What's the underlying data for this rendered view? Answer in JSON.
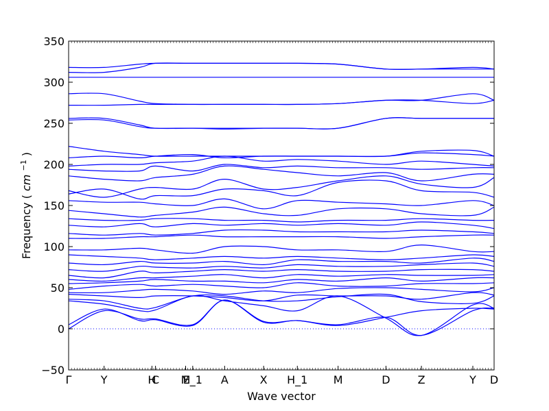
{
  "chart_data": {
    "type": "line",
    "xlabel": "Wave vector",
    "ylabel": "Frequency",
    "ylabel_unit": "cm",
    "ylabel_unit_exponent": "−1",
    "ylim": [
      -50,
      350
    ],
    "yticks": [
      -50,
      0,
      50,
      100,
      150,
      200,
      250,
      300,
      350
    ],
    "xlim": [
      0,
      12
    ],
    "special_points": [
      {
        "label": "Γ",
        "x": 0
      },
      {
        "label": "Y",
        "x": 1
      },
      {
        "label": "H",
        "x": 2.35
      },
      {
        "label": "C",
        "x": 2.45
      },
      {
        "label": "M",
        "x": 3.3
      },
      {
        "label": "E_1",
        "x": 3.5
      },
      {
        "label": "A",
        "x": 4.4
      },
      {
        "label": "X",
        "x": 5.5
      },
      {
        "label": "H_1",
        "x": 6.45
      },
      {
        "label": "M",
        "x": 7.6
      },
      {
        "label": "D",
        "x": 8.95
      },
      {
        "label": "Z",
        "x": 9.95
      },
      {
        "label": "Y",
        "x": 11.4
      },
      {
        "label": "D",
        "x": 12
      }
    ],
    "zero_line": true,
    "series_color": "#0000ff",
    "branches": [
      {
        "x": [
          0,
          1,
          2,
          2.45,
          3.5,
          4.4,
          5.5,
          6.45,
          7.6,
          8.95,
          9.95,
          11.4,
          12
        ],
        "y": [
          0,
          22,
          12,
          12,
          5,
          35,
          9,
          10,
          5,
          14,
          -8,
          22,
          25
        ]
      },
      {
        "x": [
          0,
          1,
          2,
          2.45,
          3.5,
          4.4,
          5.5,
          6.45,
          7.6,
          8.95,
          9.95,
          11.4,
          12
        ],
        "y": [
          5,
          24,
          10,
          11,
          4,
          35,
          8,
          10,
          4,
          14,
          22,
          25,
          24
        ]
      },
      {
        "x": [
          0,
          1,
          2,
          2.45,
          3.5,
          4.4,
          5.5,
          6.45,
          7.6,
          8.95,
          9.95,
          11.4,
          12
        ],
        "y": [
          34,
          30,
          22,
          23,
          40,
          34,
          28,
          22,
          40,
          13,
          -8,
          29,
          25
        ]
      },
      {
        "x": [
          0,
          1,
          2,
          2.45,
          3.5,
          4.4,
          5.5,
          6.45,
          7.6,
          8.95,
          9.95,
          11.4,
          12
        ],
        "y": [
          36,
          34,
          25,
          26,
          40,
          40,
          34,
          34,
          39,
          42,
          33,
          31,
          40
        ]
      },
      {
        "x": [
          0,
          1,
          2,
          2.45,
          3.5,
          4.4,
          5.5,
          6.45,
          7.6,
          8.95,
          9.95,
          11.4,
          12
        ],
        "y": [
          42,
          40,
          38,
          40,
          40,
          38,
          34,
          41,
          40,
          40,
          36,
          44,
          41
        ]
      },
      {
        "x": [
          0,
          1,
          2,
          2.45,
          3.5,
          4.4,
          5.5,
          6.45,
          7.6,
          8.95,
          9.95,
          11.4,
          12
        ],
        "y": [
          44,
          44,
          47,
          48,
          46,
          42,
          46,
          44,
          49,
          50,
          48,
          45,
          50
        ]
      },
      {
        "x": [
          0,
          1,
          2,
          2.45,
          3.5,
          4.4,
          5.5,
          6.45,
          7.6,
          8.95,
          9.95,
          11.4,
          12
        ],
        "y": [
          48,
          52,
          54,
          52,
          54,
          52,
          50,
          56,
          52,
          52,
          55,
          55,
          56
        ]
      },
      {
        "x": [
          0,
          1,
          2,
          2.45,
          3.5,
          4.4,
          5.5,
          6.45,
          7.6,
          8.95,
          9.95,
          11.4,
          12
        ],
        "y": [
          55,
          56,
          58,
          60,
          58,
          58,
          56,
          60,
          58,
          62,
          58,
          62,
          62
        ]
      },
      {
        "x": [
          0,
          1,
          2,
          2.45,
          3.5,
          4.4,
          5.5,
          6.45,
          7.6,
          8.95,
          9.95,
          11.4,
          12
        ],
        "y": [
          60,
          58,
          62,
          62,
          64,
          66,
          62,
          66,
          64,
          66,
          65,
          65,
          66
        ]
      },
      {
        "x": [
          0,
          1,
          2,
          2.45,
          3.5,
          4.4,
          5.5,
          6.45,
          7.6,
          8.95,
          9.95,
          11.4,
          12
        ],
        "y": [
          65,
          62,
          70,
          68,
          70,
          72,
          70,
          72,
          70,
          70,
          72,
          72,
          70
        ]
      },
      {
        "x": [
          0,
          1,
          2,
          2.45,
          3.5,
          4.4,
          5.5,
          6.45,
          7.6,
          8.95,
          9.95,
          11.4,
          12
        ],
        "y": [
          72,
          70,
          76,
          75,
          74,
          76,
          74,
          78,
          76,
          76,
          78,
          80,
          76
        ]
      },
      {
        "x": [
          0,
          1,
          2,
          2.45,
          3.5,
          4.4,
          5.5,
          6.45,
          7.6,
          8.95,
          9.95,
          11.4,
          12
        ],
        "y": [
          80,
          78,
          82,
          80,
          80,
          82,
          78,
          84,
          82,
          82,
          80,
          86,
          82
        ]
      },
      {
        "x": [
          0,
          1,
          2,
          2.45,
          3.5,
          4.4,
          5.5,
          6.45,
          7.6,
          8.95,
          9.95,
          11.4,
          12
        ],
        "y": [
          90,
          88,
          86,
          84,
          86,
          88,
          86,
          88,
          86,
          84,
          86,
          90,
          88
        ]
      },
      {
        "x": [
          0,
          1,
          2,
          2.45,
          3.5,
          4.4,
          5.5,
          6.45,
          7.6,
          8.95,
          9.95,
          11.4,
          12
        ],
        "y": [
          96,
          96,
          98,
          96,
          92,
          100,
          100,
          96,
          96,
          94,
          102,
          94,
          94
        ]
      },
      {
        "x": [
          0,
          1,
          2,
          2.45,
          3.5,
          4.4,
          5.5,
          6.45,
          7.6,
          8.95,
          9.95,
          11.4,
          12
        ],
        "y": [
          110,
          110,
          112,
          112,
          114,
          112,
          112,
          112,
          112,
          110,
          112,
          114,
          114
        ]
      },
      {
        "x": [
          0,
          1,
          2,
          2.45,
          3.5,
          4.4,
          5.5,
          6.45,
          7.6,
          8.95,
          9.95,
          11.4,
          12
        ],
        "y": [
          116,
          114,
          116,
          114,
          116,
          120,
          120,
          118,
          118,
          118,
          120,
          118,
          116
        ]
      },
      {
        "x": [
          0,
          1,
          2,
          2.45,
          3.5,
          4.4,
          5.5,
          6.45,
          7.6,
          8.95,
          9.95,
          11.4,
          12
        ],
        "y": [
          126,
          124,
          128,
          124,
          128,
          126,
          128,
          126,
          128,
          126,
          130,
          126,
          122
        ]
      },
      {
        "x": [
          0,
          1,
          2,
          2.45,
          3.5,
          4.4,
          5.5,
          6.45,
          7.6,
          8.95,
          9.95,
          11.4,
          12
        ],
        "y": [
          134,
          132,
          132,
          134,
          134,
          132,
          132,
          130,
          132,
          132,
          134,
          132,
          132
        ]
      },
      {
        "x": [
          0,
          1,
          2,
          2.45,
          3.5,
          4.4,
          5.5,
          6.45,
          7.6,
          8.95,
          9.95,
          11.4,
          12
        ],
        "y": [
          144,
          140,
          136,
          138,
          142,
          148,
          140,
          138,
          146,
          146,
          140,
          138,
          148
        ]
      },
      {
        "x": [
          0,
          1,
          2,
          2.45,
          3.5,
          4.4,
          5.5,
          6.45,
          7.6,
          8.95,
          9.95,
          11.4,
          12
        ],
        "y": [
          156,
          154,
          154,
          152,
          150,
          158,
          146,
          156,
          154,
          152,
          150,
          156,
          150
        ]
      },
      {
        "x": [
          0,
          1,
          2,
          2.45,
          3.5,
          4.4,
          5.5,
          6.45,
          7.6,
          8.95,
          9.95,
          11.4,
          12
        ],
        "y": [
          164,
          170,
          158,
          162,
          162,
          170,
          168,
          162,
          178,
          180,
          168,
          166,
          160
        ]
      },
      {
        "x": [
          0,
          1,
          2,
          2.45,
          3.5,
          4.4,
          5.5,
          6.45,
          7.6,
          8.95,
          9.95,
          11.4,
          12
        ],
        "y": [
          168,
          160,
          170,
          172,
          170,
          182,
          170,
          172,
          180,
          186,
          176,
          172,
          184
        ]
      },
      {
        "x": [
          0,
          1,
          2,
          2.45,
          3.5,
          4.4,
          5.5,
          6.45,
          7.6,
          8.95,
          9.95,
          11.4,
          12
        ],
        "y": [
          186,
          182,
          180,
          184,
          188,
          198,
          194,
          190,
          186,
          190,
          180,
          188,
          188
        ]
      },
      {
        "x": [
          0,
          1,
          2,
          2.45,
          3.5,
          4.4,
          5.5,
          6.45,
          7.6,
          8.95,
          9.95,
          11.4,
          12
        ],
        "y": [
          194,
          192,
          192,
          198,
          192,
          200,
          196,
          198,
          196,
          196,
          194,
          196,
          196
        ]
      },
      {
        "x": [
          0,
          1,
          2,
          2.45,
          3.5,
          4.4,
          5.5,
          6.45,
          7.6,
          8.95,
          9.95,
          11.4,
          12
        ],
        "y": [
          198,
          200,
          200,
          202,
          204,
          210,
          204,
          206,
          204,
          200,
          204,
          200,
          198
        ]
      },
      {
        "x": [
          0,
          1,
          2,
          2.45,
          3.5,
          4.4,
          5.5,
          6.45,
          7.6,
          8.95,
          9.95,
          11.4,
          12
        ],
        "y": [
          208,
          210,
          208,
          210,
          212,
          208,
          210,
          210,
          210,
          210,
          214,
          212,
          210
        ]
      },
      {
        "x": [
          0,
          1,
          2,
          2.45,
          3.5,
          4.4,
          5.5,
          6.45,
          7.6,
          8.95,
          9.95,
          11.4,
          12
        ],
        "y": [
          222,
          216,
          212,
          210,
          210,
          210,
          210,
          210,
          210,
          210,
          216,
          217,
          210
        ]
      },
      {
        "x": [
          0,
          1,
          2,
          2.45,
          3.5,
          4.4,
          5.5,
          6.45,
          7.6,
          8.95,
          9.95,
          11.4,
          12
        ],
        "y": [
          254,
          254,
          246,
          244,
          244,
          243,
          244,
          244,
          244,
          256,
          256,
          256,
          256
        ]
      },
      {
        "x": [
          0,
          1,
          2,
          2.45,
          3.5,
          4.4,
          5.5,
          6.45,
          7.6,
          8.95,
          9.95,
          11.4,
          12
        ],
        "y": [
          256,
          256,
          248,
          244,
          244,
          244,
          244,
          244,
          244,
          256,
          256,
          256,
          256
        ]
      },
      {
        "x": [
          0,
          1,
          2,
          2.45,
          3.5,
          4.4,
          5.5,
          6.45,
          7.6,
          8.95,
          9.95,
          11.4,
          12
        ],
        "y": [
          272,
          272,
          273,
          273,
          273,
          273,
          273,
          273,
          274,
          278,
          278,
          274,
          278
        ]
      },
      {
        "x": [
          0,
          1,
          2,
          2.45,
          3.5,
          4.4,
          5.5,
          6.45,
          7.6,
          8.95,
          9.95,
          11.4,
          12
        ],
        "y": [
          286,
          286,
          277,
          274,
          273,
          273,
          273,
          273,
          274,
          278,
          278,
          286,
          278
        ]
      },
      {
        "x": [
          0,
          1,
          2,
          2.45,
          3.5,
          4.4,
          5.5,
          6.45,
          7.6,
          8.95,
          9.95,
          11.4,
          12
        ],
        "y": [
          306,
          306,
          306,
          306,
          306,
          306,
          306,
          306,
          306,
          306,
          306,
          306,
          306
        ]
      },
      {
        "x": [
          0,
          1,
          2,
          2.45,
          3.5,
          4.4,
          5.5,
          6.45,
          7.6,
          8.95,
          9.95,
          11.4,
          12
        ],
        "y": [
          312,
          312,
          318,
          323,
          323,
          323,
          323,
          323,
          322,
          316,
          316,
          316,
          316
        ]
      },
      {
        "x": [
          0,
          1,
          2,
          2.45,
          3.5,
          4.4,
          5.5,
          6.45,
          7.6,
          8.95,
          9.95,
          11.4,
          12
        ],
        "y": [
          318,
          318,
          322,
          323,
          323,
          323,
          323,
          323,
          322,
          316,
          316,
          318,
          316
        ]
      }
    ]
  }
}
